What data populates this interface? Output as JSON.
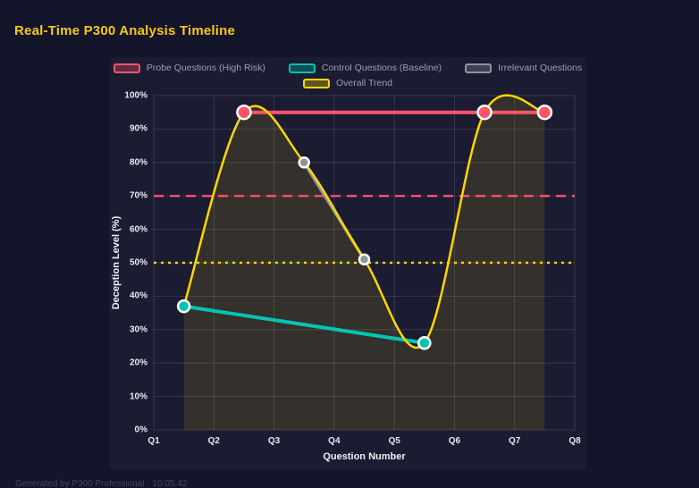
{
  "header": {
    "title": "Real-Time P300 Analysis Timeline"
  },
  "footer": {
    "text": "Generated by P300 Professional · 10:05:42"
  },
  "chart_data": {
    "type": "line",
    "title": "Real-Time P300 Analysis Timeline",
    "xlabel": "Question Number",
    "ylabel": "Deception Level (%)",
    "x_ticks": [
      "Q1",
      "Q2",
      "Q3",
      "Q4",
      "Q5",
      "Q6",
      "Q7",
      "Q8"
    ],
    "y_ticks": [
      "0%",
      "10%",
      "20%",
      "30%",
      "40%",
      "50%",
      "60%",
      "70%",
      "80%",
      "90%",
      "100%"
    ],
    "xlim": [
      1,
      8
    ],
    "ylim": [
      0,
      100
    ],
    "grid": true,
    "legend_position": "top",
    "background": "#1b1b31",
    "grid_color": "rgba(255,255,255,0.13)",
    "series": [
      {
        "name": "Probe Questions (High Risk)",
        "color": "#ff5468",
        "x": [
          2.5,
          6.5,
          7.5
        ],
        "y": [
          95,
          95,
          95
        ],
        "line_width": 4,
        "point_radius": 7.5,
        "smooth": false,
        "fill": null
      },
      {
        "name": "Control Questions (Baseline)",
        "color": "#00c4b4",
        "x": [
          1.5,
          5.5
        ],
        "y": [
          37,
          26
        ],
        "line_width": 4,
        "point_radius": 6.5,
        "smooth": false,
        "fill": null
      },
      {
        "name": "Irrelevant Questions",
        "color": "#8e949e",
        "x": [
          3.5,
          4.5
        ],
        "y": [
          80,
          51
        ],
        "line_width": 3.5,
        "point_radius": 5.5,
        "smooth": false,
        "fill": null
      },
      {
        "name": "Overall Trend",
        "color": "#ffd700",
        "x": [
          1.5,
          2.5,
          3.5,
          4.5,
          5.5,
          6.5,
          7.5
        ],
        "y": [
          37,
          95,
          80,
          51,
          26,
          95,
          95
        ],
        "line_width": 2.5,
        "point_radius": 0,
        "smooth": true,
        "fill": "rgba(255,215,0,0.11)"
      }
    ],
    "thresholds": [
      {
        "value": 70,
        "color": "#ff4d6d",
        "dash": "11 7",
        "width": 2.5
      },
      {
        "value": 50,
        "color": "#ffd700",
        "dash": "3 5",
        "width": 2.5
      }
    ]
  }
}
